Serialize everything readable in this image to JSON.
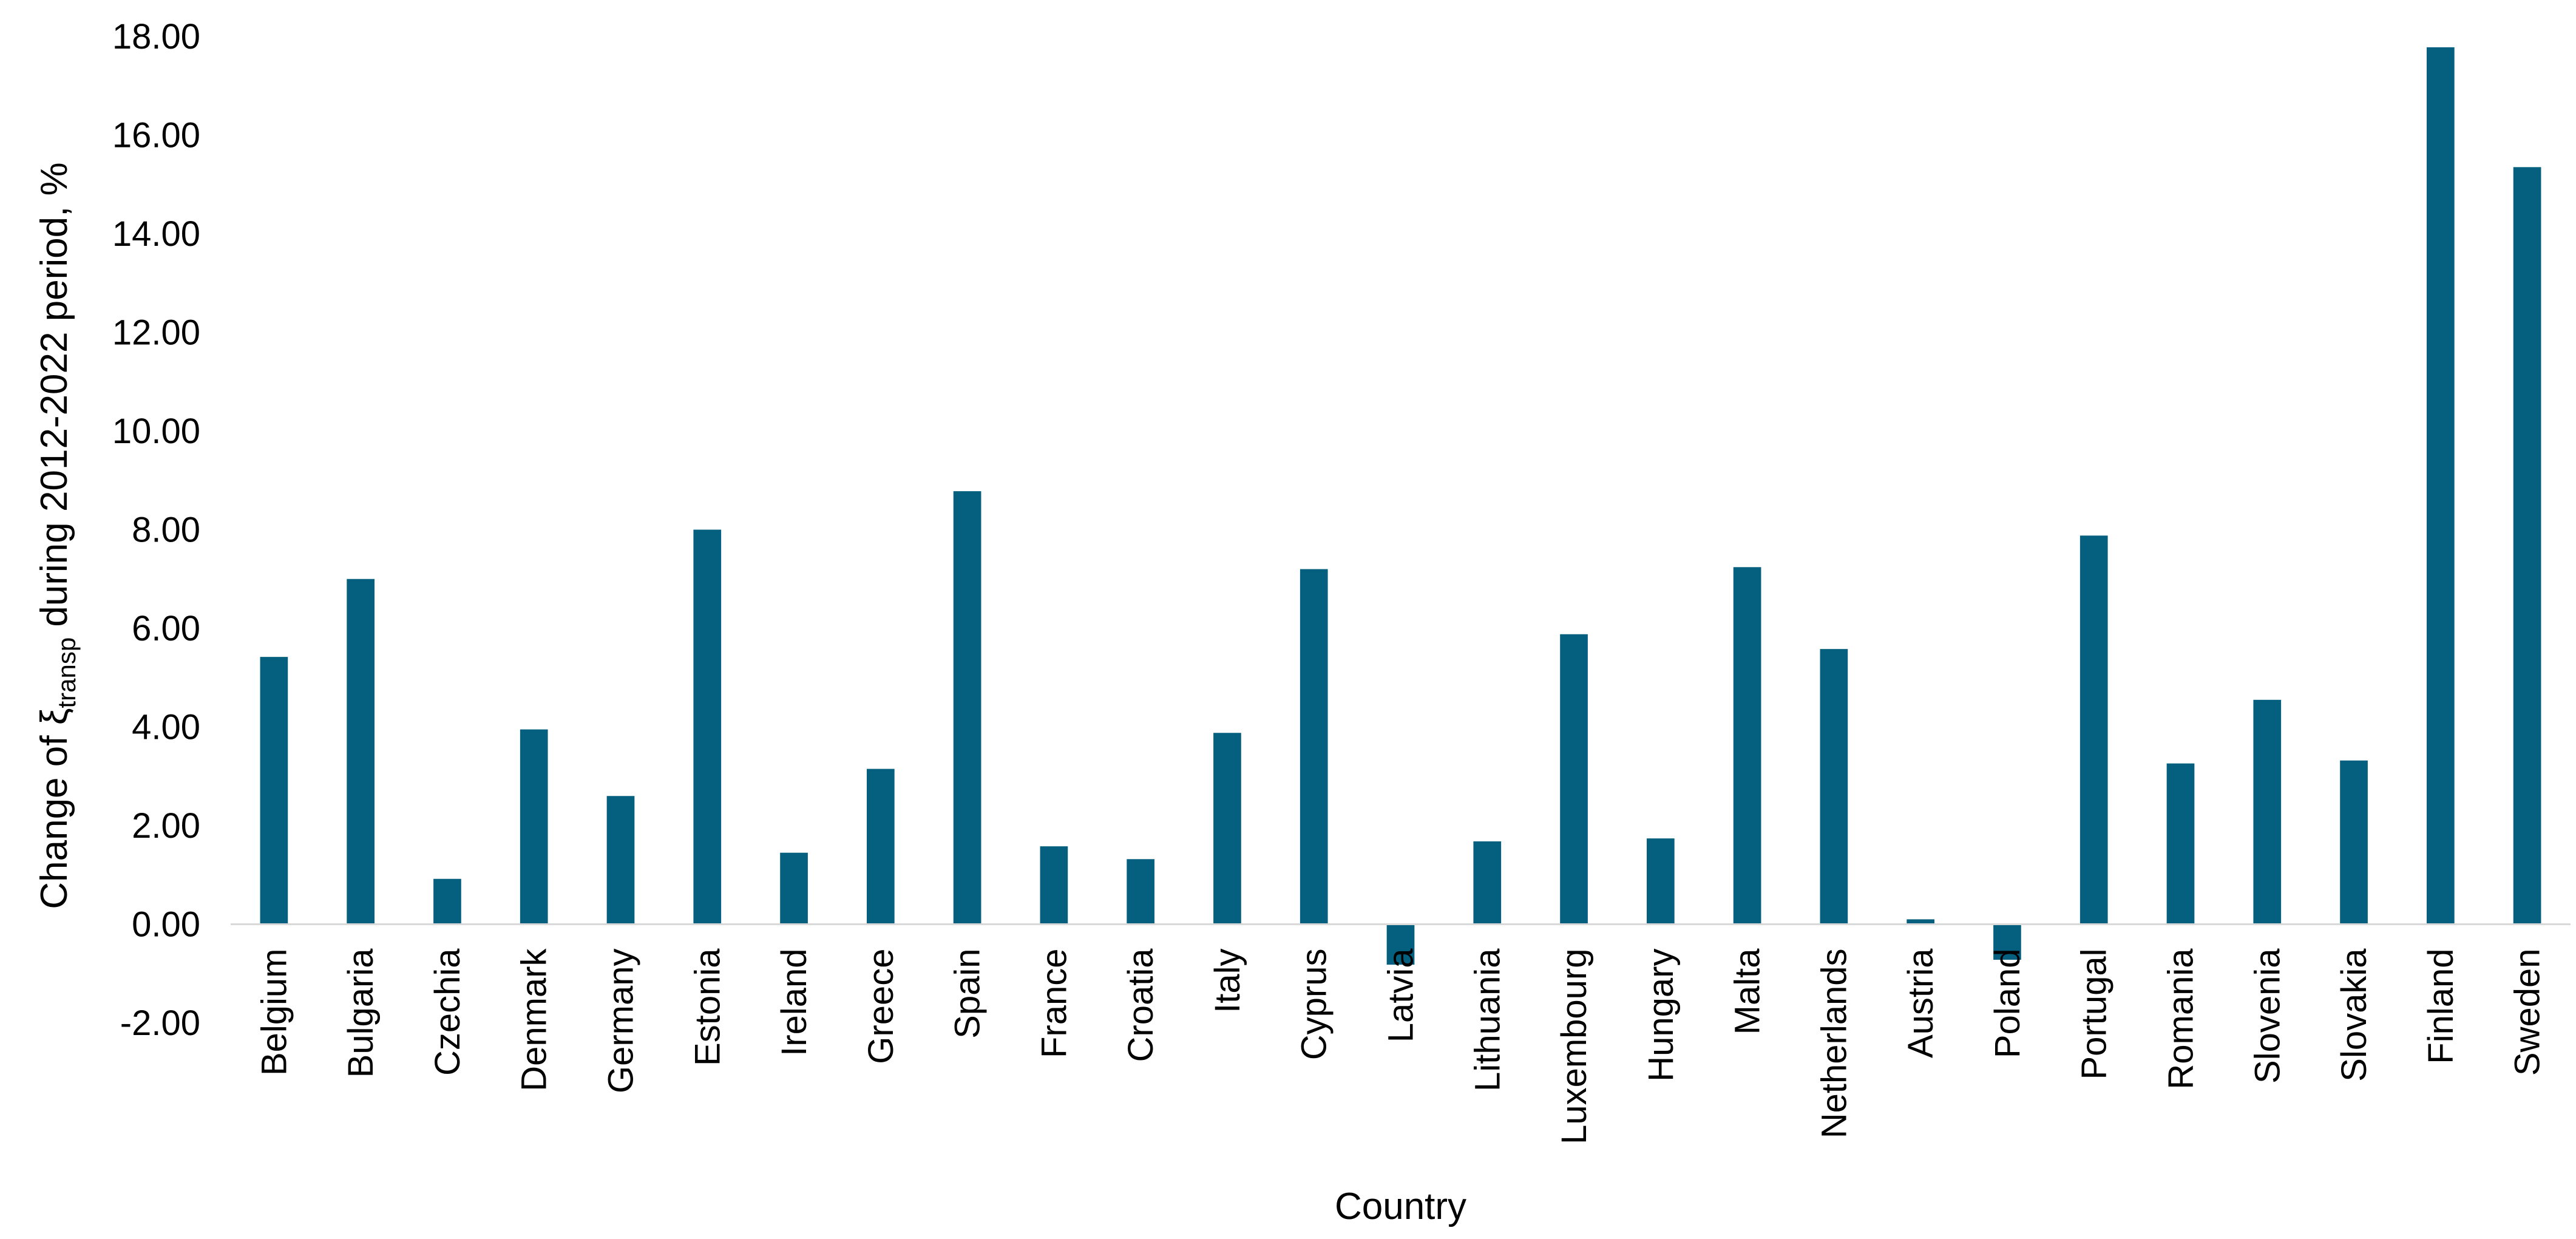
{
  "chart_data": {
    "type": "bar",
    "title": "",
    "xlabel": "Country",
    "ylabel": {
      "prefix": "Change of ",
      "symbol": "ξ",
      "subscript": "transp",
      "suffix": " during 2012-2022 period, %"
    },
    "ylim": [
      -2,
      18
    ],
    "yticks": [
      "-2.00",
      "0.00",
      "2.00",
      "4.00",
      "6.00",
      "8.00",
      "10.00",
      "12.00",
      "14.00",
      "16.00",
      "18.00"
    ],
    "grid": false,
    "legend": "none",
    "bar_color": "#05607F",
    "categories": [
      "Belgium",
      "Bulgaria",
      "Czechia",
      "Denmark",
      "Germany",
      "Estonia",
      "Ireland",
      "Greece",
      "Spain",
      "France",
      "Croatia",
      "Italy",
      "Cyprus",
      "Latvia",
      "Lithuania",
      "Luxembourg",
      "Hungary",
      "Malta",
      "Netherlands",
      "Austria",
      "Poland",
      "Portugal",
      "Romania",
      "Slovenia",
      "Slovakia",
      "Finland",
      "Sweden"
    ],
    "values": [
      5.42,
      7.0,
      0.92,
      3.95,
      2.6,
      8.0,
      1.45,
      3.15,
      8.78,
      1.58,
      1.32,
      3.88,
      7.2,
      -0.82,
      1.68,
      5.88,
      1.74,
      7.24,
      5.58,
      0.1,
      -0.72,
      7.88,
      3.26,
      4.55,
      3.32,
      17.78,
      15.35
    ]
  }
}
